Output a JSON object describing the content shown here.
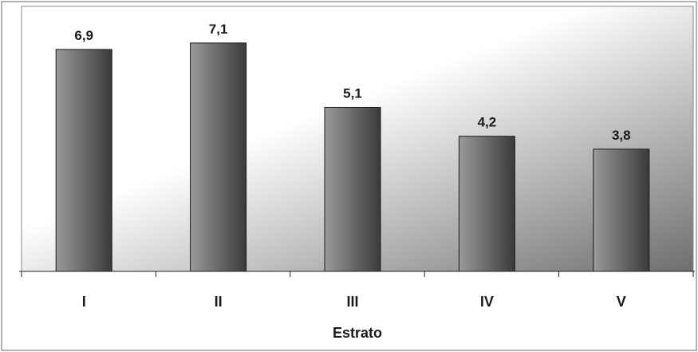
{
  "chart_data": {
    "type": "bar",
    "title": "",
    "xlabel": "Estrato",
    "ylabel": "",
    "categories": [
      "I",
      "II",
      "III",
      "IV",
      "V"
    ],
    "series": [
      {
        "values": [
          6.9,
          7.1,
          5.1,
          4.2,
          3.8
        ],
        "value_labels": [
          "6,9",
          "7,1",
          "5,1",
          "4,2",
          "3,8"
        ]
      }
    ],
    "ylim": [
      0,
      8
    ],
    "grid": false,
    "legend": "none",
    "colors": {
      "bar_light": "#9a9a9a",
      "bar_dark": "#3a3a3a",
      "plot_bg_light": "#ffffff",
      "plot_bg_dark": "#6e6e6e",
      "border": "#555555"
    }
  }
}
